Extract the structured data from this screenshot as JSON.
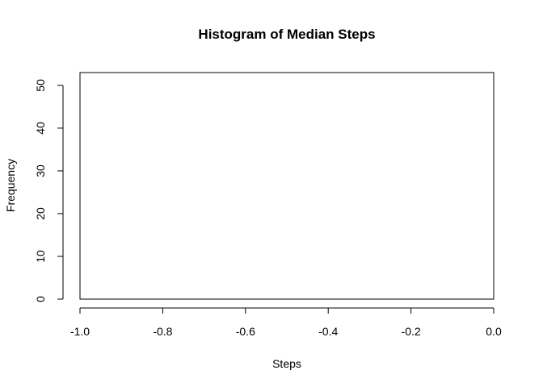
{
  "chart_data": {
    "type": "bar",
    "title": "Histogram of Median Steps",
    "xlabel": "Steps",
    "ylabel": "Frequency",
    "xlim": [
      -1.0,
      0.0
    ],
    "ylim": [
      0,
      53
    ],
    "x_ticks": [
      "-1.0",
      "-0.8",
      "-0.6",
      "-0.4",
      "-0.2",
      "0.0"
    ],
    "y_ticks": [
      "0",
      "10",
      "20",
      "30",
      "40",
      "50"
    ],
    "bins": [
      {
        "x0": -1.0,
        "x1": 0.0,
        "count": 53
      }
    ],
    "grid": false
  }
}
